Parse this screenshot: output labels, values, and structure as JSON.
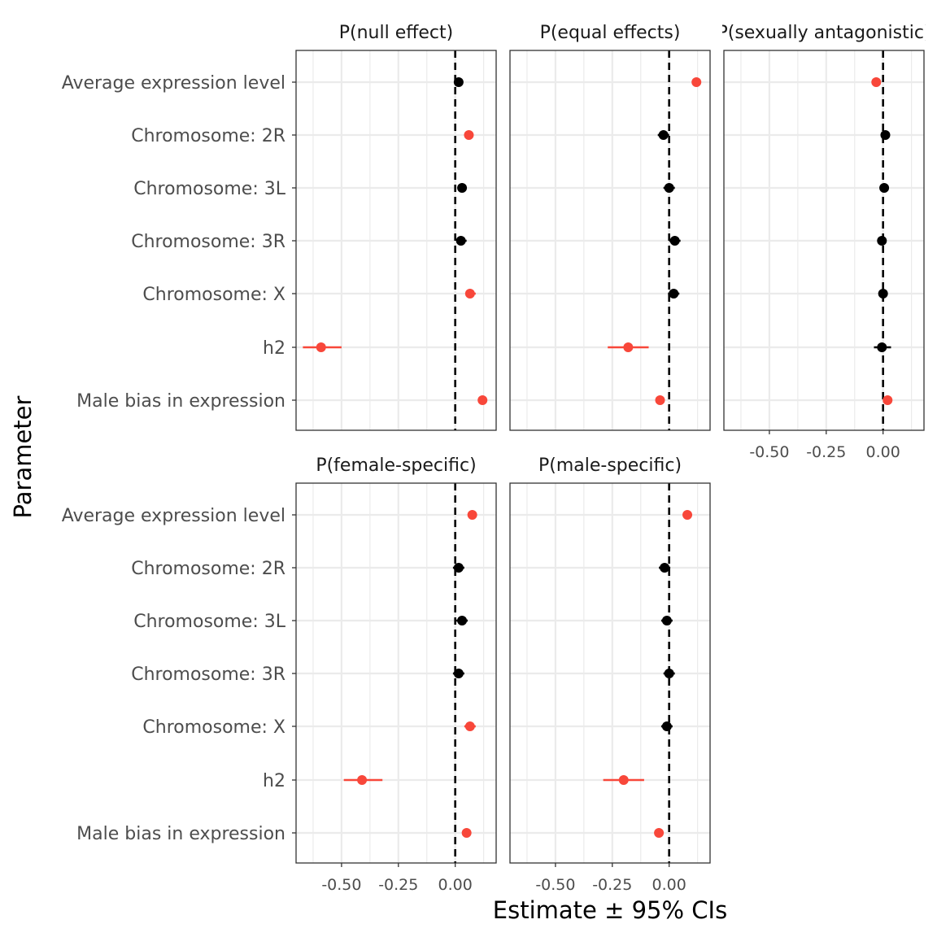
{
  "colors": {
    "significant": "#F8473A",
    "not_significant": "#000000",
    "grid": "#ebebeb",
    "panel_border": "#333333"
  },
  "chart_data": {
    "type": "forest",
    "xlabel": "Estimate ± 95% CIs",
    "ylabel": "Parameter",
    "xlim": [
      -0.7,
      0.18
    ],
    "xticks": [
      -0.5,
      -0.25,
      0.0
    ],
    "xtick_labels": [
      "-0.50",
      "-0.25",
      "0.00"
    ],
    "reference_line": 0,
    "parameters": [
      "Average expression level",
      "Chromosome: 2R",
      "Chromosome: 3L",
      "Chromosome: 3R",
      "Chromosome: X",
      "h2",
      "Male bias in expression"
    ],
    "facets": [
      {
        "title": "P(null effect)",
        "points": [
          {
            "parameter": "Average expression level",
            "estimate": 0.015,
            "lower": 0.005,
            "upper": 0.025,
            "significant": false
          },
          {
            "parameter": "Chromosome: 2R",
            "estimate": 0.06,
            "lower": 0.045,
            "upper": 0.08,
            "significant": true
          },
          {
            "parameter": "Chromosome: 3L",
            "estimate": 0.03,
            "lower": 0.01,
            "upper": 0.05,
            "significant": false
          },
          {
            "parameter": "Chromosome: 3R",
            "estimate": 0.025,
            "lower": 0.005,
            "upper": 0.05,
            "significant": false
          },
          {
            "parameter": "Chromosome: X",
            "estimate": 0.065,
            "lower": 0.045,
            "upper": 0.09,
            "significant": true
          },
          {
            "parameter": "h2",
            "estimate": -0.59,
            "lower": -0.67,
            "upper": -0.5,
            "significant": true
          },
          {
            "parameter": "Male bias in expression",
            "estimate": 0.12,
            "lower": 0.11,
            "upper": 0.13,
            "significant": true
          }
        ]
      },
      {
        "title": "P(equal effects)",
        "points": [
          {
            "parameter": "Average expression level",
            "estimate": 0.12,
            "lower": 0.11,
            "upper": 0.13,
            "significant": true
          },
          {
            "parameter": "Chromosome: 2R",
            "estimate": -0.025,
            "lower": -0.05,
            "upper": 0.0,
            "significant": false
          },
          {
            "parameter": "Chromosome: 3L",
            "estimate": 0.0,
            "lower": -0.025,
            "upper": 0.025,
            "significant": false
          },
          {
            "parameter": "Chromosome: 3R",
            "estimate": 0.025,
            "lower": 0.0,
            "upper": 0.05,
            "significant": false
          },
          {
            "parameter": "Chromosome: X",
            "estimate": 0.02,
            "lower": -0.005,
            "upper": 0.045,
            "significant": false
          },
          {
            "parameter": "h2",
            "estimate": -0.18,
            "lower": -0.27,
            "upper": -0.09,
            "significant": true
          },
          {
            "parameter": "Male bias in expression",
            "estimate": -0.04,
            "lower": -0.05,
            "upper": -0.03,
            "significant": true
          }
        ]
      },
      {
        "title": "P(sexually antagonistic)",
        "points": [
          {
            "parameter": "Average expression level",
            "estimate": -0.03,
            "lower": -0.04,
            "upper": -0.02,
            "significant": true
          },
          {
            "parameter": "Chromosome: 2R",
            "estimate": 0.01,
            "lower": 0.0,
            "upper": 0.02,
            "significant": false
          },
          {
            "parameter": "Chromosome: 3L",
            "estimate": 0.005,
            "lower": -0.005,
            "upper": 0.015,
            "significant": false
          },
          {
            "parameter": "Chromosome: 3R",
            "estimate": -0.005,
            "lower": -0.015,
            "upper": 0.005,
            "significant": false
          },
          {
            "parameter": "Chromosome: X",
            "estimate": 0.0,
            "lower": -0.01,
            "upper": 0.01,
            "significant": false
          },
          {
            "parameter": "h2",
            "estimate": -0.005,
            "lower": -0.04,
            "upper": 0.035,
            "significant": false
          },
          {
            "parameter": "Male bias in expression",
            "estimate": 0.02,
            "lower": 0.01,
            "upper": 0.03,
            "significant": true
          }
        ]
      },
      {
        "title": "P(female-specific)",
        "points": [
          {
            "parameter": "Average expression level",
            "estimate": 0.075,
            "lower": 0.065,
            "upper": 0.085,
            "significant": true
          },
          {
            "parameter": "Chromosome: 2R",
            "estimate": 0.015,
            "lower": -0.01,
            "upper": 0.04,
            "significant": false
          },
          {
            "parameter": "Chromosome: 3L",
            "estimate": 0.03,
            "lower": 0.005,
            "upper": 0.055,
            "significant": false
          },
          {
            "parameter": "Chromosome: 3R",
            "estimate": 0.015,
            "lower": -0.01,
            "upper": 0.04,
            "significant": false
          },
          {
            "parameter": "Chromosome: X",
            "estimate": 0.065,
            "lower": 0.04,
            "upper": 0.09,
            "significant": true
          },
          {
            "parameter": "h2",
            "estimate": -0.41,
            "lower": -0.49,
            "upper": -0.32,
            "significant": true
          },
          {
            "parameter": "Male bias in expression",
            "estimate": 0.05,
            "lower": 0.04,
            "upper": 0.06,
            "significant": true
          }
        ]
      },
      {
        "title": "P(male-specific)",
        "points": [
          {
            "parameter": "Average expression level",
            "estimate": 0.08,
            "lower": 0.07,
            "upper": 0.09,
            "significant": true
          },
          {
            "parameter": "Chromosome: 2R",
            "estimate": -0.02,
            "lower": -0.045,
            "upper": 0.005,
            "significant": false
          },
          {
            "parameter": "Chromosome: 3L",
            "estimate": -0.01,
            "lower": -0.035,
            "upper": 0.015,
            "significant": false
          },
          {
            "parameter": "Chromosome: 3R",
            "estimate": 0.0,
            "lower": -0.025,
            "upper": 0.025,
            "significant": false
          },
          {
            "parameter": "Chromosome: X",
            "estimate": -0.01,
            "lower": -0.035,
            "upper": 0.015,
            "significant": false
          },
          {
            "parameter": "h2",
            "estimate": -0.2,
            "lower": -0.29,
            "upper": -0.11,
            "significant": true
          },
          {
            "parameter": "Male bias in expression",
            "estimate": -0.045,
            "lower": -0.055,
            "upper": -0.035,
            "significant": true
          }
        ]
      }
    ]
  }
}
